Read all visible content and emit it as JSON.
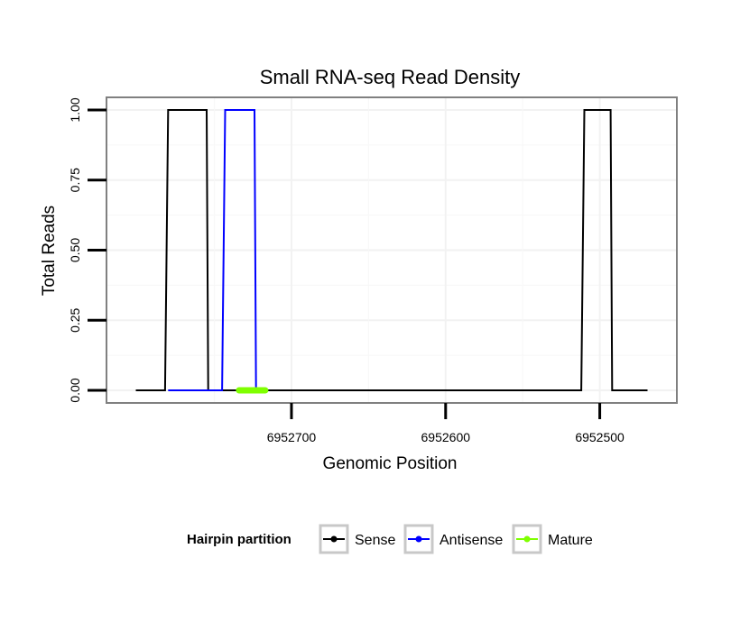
{
  "chart_data": {
    "type": "line",
    "title": "Small RNA-seq Read Density",
    "xlabel": "Genomic Position",
    "ylabel": "Total Reads",
    "x_reversed": true,
    "xlim": [
      6952820,
      6952450
    ],
    "ylim": [
      -0.045,
      1.045
    ],
    "x_ticks": [
      6952700,
      6952600,
      6952500
    ],
    "x_tick_labels": [
      "6952700",
      "6952600",
      "6952500"
    ],
    "y_ticks": [
      0,
      0.25,
      0.5,
      0.75,
      1.0
    ],
    "y_tick_labels": [
      "0.00",
      "0.25",
      "0.50",
      "0.75",
      "1.00"
    ],
    "grid": true,
    "legend": {
      "title": "Hairpin partition",
      "position": "bottom",
      "entries": [
        "Sense",
        "Antisense",
        "Mature"
      ]
    },
    "series": [
      {
        "name": "Sense",
        "color": "#000000",
        "x": [
          6952801,
          6952782,
          6952780,
          6952755,
          6952754,
          6952512,
          6952510,
          6952493,
          6952492,
          6952469
        ],
        "y": [
          0,
          0,
          1,
          1,
          0,
          0,
          1,
          1,
          0,
          0
        ]
      },
      {
        "name": "Antisense",
        "color": "#0000ff",
        "x": [
          6952780,
          6952745,
          6952743,
          6952724,
          6952723,
          6952510,
          6952492
        ],
        "y": [
          0,
          0,
          1,
          1,
          0,
          null,
          0
        ]
      },
      {
        "name": "Mature",
        "color": "#7fff00",
        "x": [
          6952734,
          6952717
        ],
        "y": [
          0,
          0
        ]
      }
    ]
  }
}
